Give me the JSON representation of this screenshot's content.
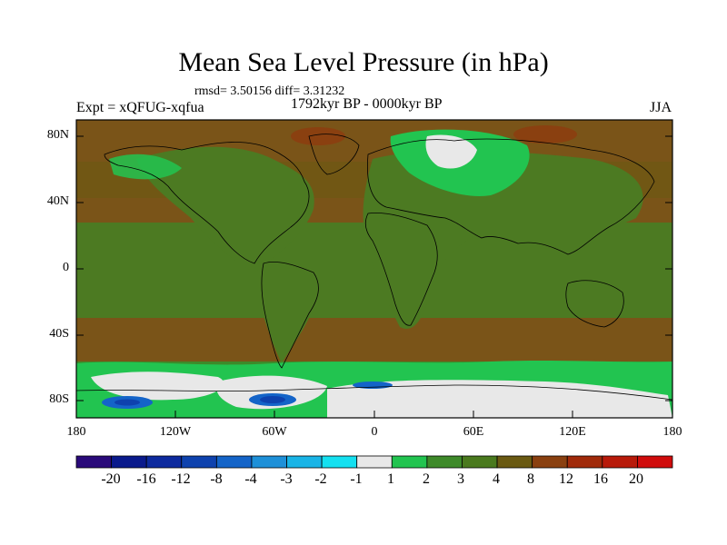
{
  "figure": {
    "title": "Mean Sea Level Pressure (in hPa)",
    "stats": "rmsd= 3.50156 diff= 3.31232",
    "experiment": "Expt = xQFUG-xqfua",
    "period": "1792kyr BP - 0000kyr BP",
    "season": "JJA"
  },
  "axes": {
    "lat_ticks": [
      "80N",
      "40N",
      "0",
      "40S",
      "80S"
    ],
    "lon_ticks": [
      "180",
      "120W",
      "60W",
      "0",
      "60E",
      "120E",
      "180"
    ]
  },
  "colorbar": {
    "labels": [
      "-20",
      "-16",
      "-12",
      "-8",
      "-4",
      "-3",
      "-2",
      "-1",
      "1",
      "2",
      "3",
      "4",
      "8",
      "12",
      "16",
      "20"
    ],
    "colors": [
      "#2a0a7a",
      "#0a1a8c",
      "#0d2a9e",
      "#0e42ae",
      "#1464c8",
      "#1e90d8",
      "#19b4e6",
      "#14e0f0",
      "#e8e8e8",
      "#22c450",
      "#3e8a2a",
      "#4a7a1e",
      "#6a5a12",
      "#8a4010",
      "#a02a0a",
      "#b81a0a",
      "#d00c0c"
    ]
  },
  "map_colors": {
    "ocean_brown": "#7a5418",
    "land_green": "#4c7a22",
    "mid_green": "#3e8a2a",
    "bright_green": "#22c450",
    "near_zero": "#e8e8e8",
    "blue": "#1464c8",
    "dark_blue": "#0e42ae",
    "red_brown": "#8a4010"
  }
}
